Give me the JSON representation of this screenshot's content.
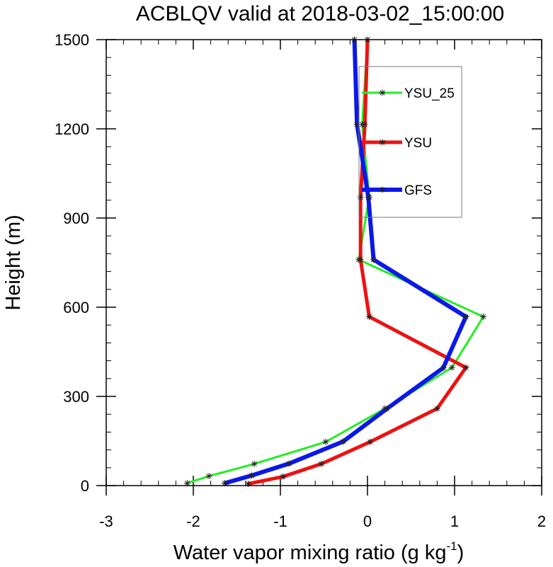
{
  "chart_data": {
    "type": "line",
    "title": "ACBLQV valid at 2018-03-02_15:00:00",
    "xlabel_main": "Water vapor mixing ratio (g kg",
    "xlabel_sup": "-1",
    "xlabel_end": ")",
    "ylabel": "Height (m)",
    "xlim": [
      -3,
      2
    ],
    "ylim": [
      0,
      1500
    ],
    "xticks": [
      -3,
      -2,
      -1,
      0,
      1,
      2
    ],
    "yticks": [
      0,
      300,
      600,
      900,
      1200,
      1500
    ],
    "legend_position": "top-right",
    "series": [
      {
        "name": "YSU_25",
        "color": "#22ee22",
        "width": 3,
        "points": [
          [
            -2.07,
            8
          ],
          [
            -1.82,
            32
          ],
          [
            -1.3,
            73
          ],
          [
            -0.48,
            147
          ],
          [
            0.2,
            259
          ],
          [
            0.97,
            397
          ],
          [
            1.33,
            568
          ],
          [
            -0.1,
            760
          ],
          [
            0.02,
            970
          ],
          [
            -0.06,
            1215
          ],
          [
            0.0,
            1500
          ]
        ]
      },
      {
        "name": "YSU",
        "color": "#ee1111",
        "width": 5,
        "points": [
          [
            -1.37,
            6
          ],
          [
            -0.97,
            30
          ],
          [
            -0.53,
            73
          ],
          [
            0.03,
            147
          ],
          [
            0.8,
            259
          ],
          [
            1.13,
            397
          ],
          [
            0.02,
            568
          ],
          [
            -0.08,
            760
          ],
          [
            -0.08,
            970
          ],
          [
            -0.03,
            1215
          ],
          [
            0.0,
            1500
          ]
        ]
      },
      {
        "name": "GFS",
        "color": "#0b18e8",
        "width": 6,
        "points": [
          [
            -1.64,
            8
          ],
          [
            -1.33,
            34
          ],
          [
            -0.9,
            74
          ],
          [
            -0.28,
            148
          ],
          [
            0.22,
            258
          ],
          [
            0.87,
            396
          ],
          [
            1.13,
            568
          ],
          [
            0.07,
            760
          ],
          [
            0.01,
            970
          ],
          [
            -0.12,
            1215
          ],
          [
            -0.15,
            1500
          ]
        ]
      }
    ]
  }
}
